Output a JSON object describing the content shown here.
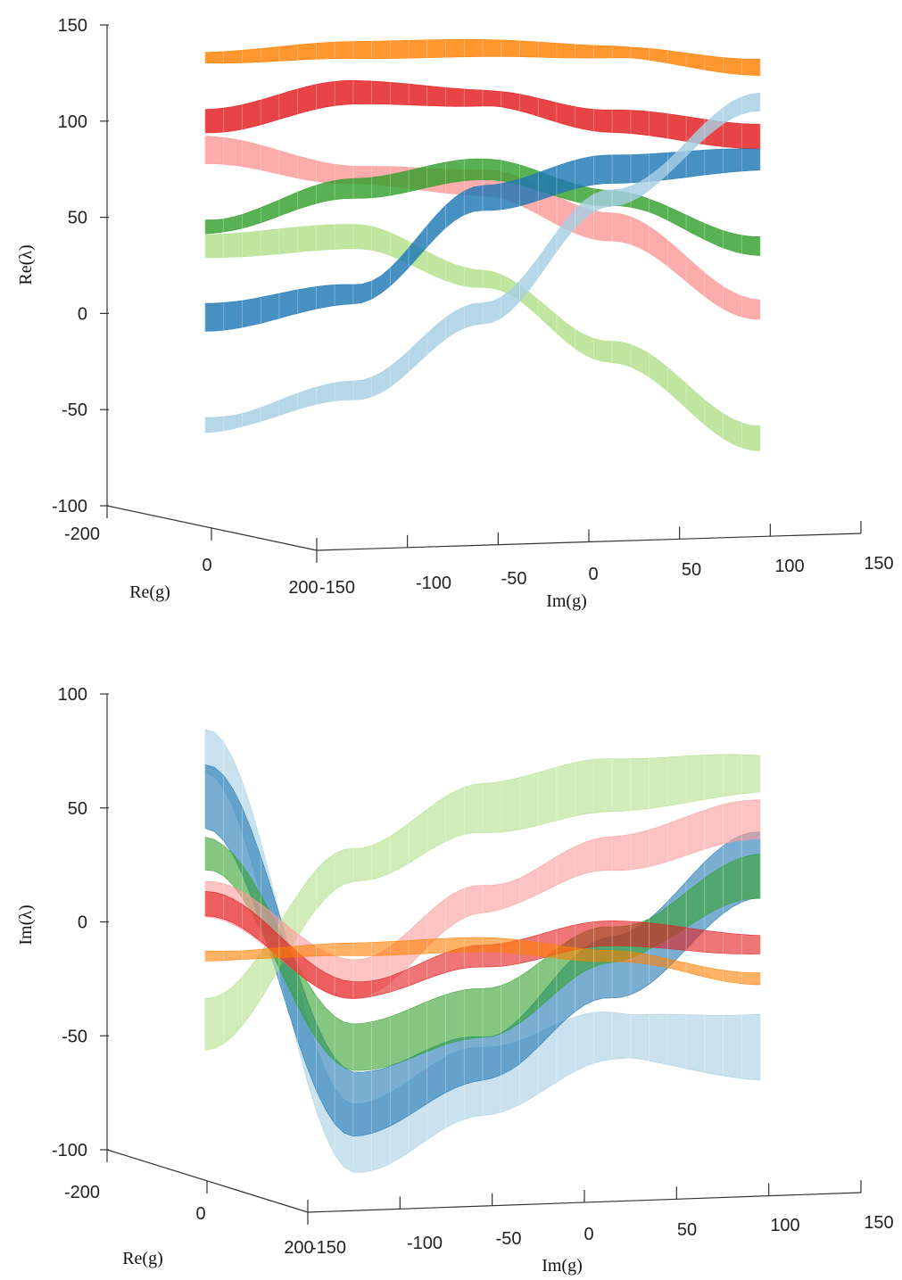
{
  "chart_data": [
    {
      "type": "surface3d",
      "panel": "top",
      "zlabel": "Re(λ)",
      "xlabel": "Re(g)",
      "ylabel": "Im(g)",
      "zlim": [
        -100,
        150
      ],
      "zticks": [
        "150",
        "100",
        "50",
        "0",
        "-50",
        "-100"
      ],
      "re_g_ticks": [
        "-200",
        "0",
        "200"
      ],
      "im_g_ticks": [
        "-150",
        "-100",
        "-50",
        "0",
        "50",
        "100",
        "150"
      ],
      "series": [
        {
          "color": "#ff7f00",
          "im_g": [
            -130,
            -60,
            0,
            60,
            130
          ],
          "re_lambda": [
            133,
            137,
            138,
            136,
            128
          ]
        },
        {
          "color": "#e31a1c",
          "im_g": [
            -130,
            -60,
            0,
            60,
            130
          ],
          "re_lambda": [
            100,
            115,
            112,
            100,
            92
          ]
        },
        {
          "color": "#fb9a99",
          "im_g": [
            -130,
            -60,
            0,
            60,
            130
          ],
          "re_lambda": [
            85,
            72,
            68,
            45,
            2
          ]
        },
        {
          "color": "#33a02c",
          "im_g": [
            -130,
            -60,
            0,
            60,
            130
          ],
          "re_lambda": [
            45,
            65,
            75,
            60,
            35
          ]
        },
        {
          "color": "#b2df8a",
          "im_g": [
            -130,
            -60,
            0,
            60,
            130
          ],
          "re_lambda": [
            35,
            40,
            18,
            -20,
            -65
          ]
        },
        {
          "color": "#1f78b4",
          "im_g": [
            -130,
            -60,
            0,
            60,
            130
          ],
          "re_lambda": [
            -2,
            10,
            60,
            75,
            80
          ]
        },
        {
          "color": "#a6cee3",
          "im_g": [
            -130,
            -60,
            0,
            60,
            130
          ],
          "re_lambda": [
            -58,
            -40,
            0,
            60,
            110
          ]
        }
      ]
    },
    {
      "type": "surface3d",
      "panel": "bottom",
      "zlabel": "Im(λ)",
      "xlabel": "Re(g)",
      "ylabel": "Im(g)",
      "zlim": [
        -100,
        100
      ],
      "zticks": [
        "100",
        "50",
        "0",
        "-50",
        "-100"
      ],
      "re_g_ticks": [
        "-200",
        "0",
        "200"
      ],
      "im_g_ticks": [
        "-150",
        "-100",
        "-50",
        "0",
        "50",
        "100",
        "150"
      ],
      "series": [
        {
          "color": "#a6cee3",
          "im_g": [
            -130,
            -60,
            0,
            60,
            130
          ],
          "im_lambda": [
            75,
            -95,
            -70,
            -50,
            -55
          ]
        },
        {
          "color": "#1f78b4",
          "im_g": [
            -130,
            -60,
            0,
            60,
            130
          ],
          "im_lambda": [
            55,
            -80,
            -60,
            -20,
            25
          ]
        },
        {
          "color": "#b2df8a",
          "im_g": [
            -130,
            -60,
            0,
            60,
            130
          ],
          "im_lambda": [
            -45,
            25,
            50,
            60,
            65
          ]
        },
        {
          "color": "#33a02c",
          "im_g": [
            -130,
            -60,
            0,
            60,
            130
          ],
          "im_lambda": [
            30,
            -55,
            -40,
            -10,
            20
          ]
        },
        {
          "color": "#fb9a99",
          "im_g": [
            -130,
            -60,
            0,
            60,
            130
          ],
          "im_lambda": [
            10,
            -25,
            10,
            30,
            45
          ]
        },
        {
          "color": "#e31a1c",
          "im_g": [
            -130,
            -60,
            0,
            60,
            130
          ],
          "im_lambda": [
            8,
            -30,
            -15,
            -5,
            -10
          ]
        },
        {
          "color": "#ff7f00",
          "im_g": [
            -130,
            -60,
            0,
            60,
            130
          ],
          "im_lambda": [
            -15,
            -12,
            -10,
            -15,
            -25
          ]
        }
      ]
    }
  ]
}
